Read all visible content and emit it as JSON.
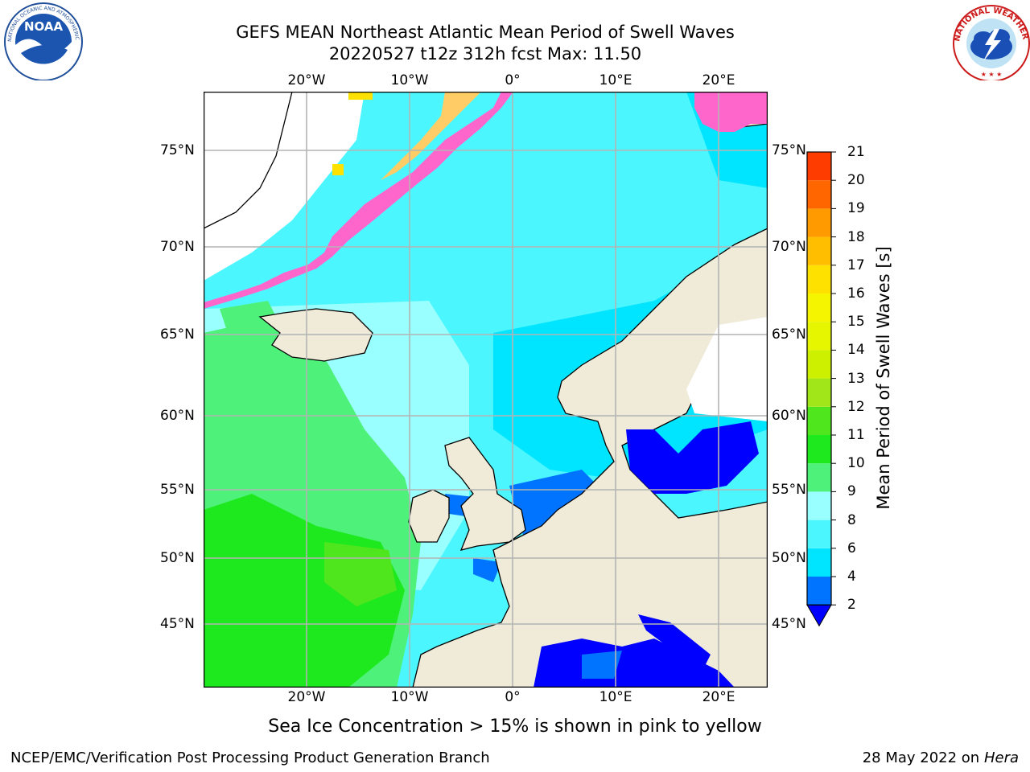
{
  "title": {
    "line1": "GEFS MEAN Northeast Atlantic Mean Period of Swell Waves",
    "line2": "20220527 t12z 312h fcst   Max: 11.50"
  },
  "map": {
    "lon_ticks": [
      "20°W",
      "10°W",
      "0°",
      "10°E",
      "20°E"
    ],
    "lat_ticks": [
      "75°N",
      "70°N",
      "65°N",
      "60°N",
      "55°N",
      "50°N",
      "45°N"
    ],
    "land_color": "#efebd8",
    "grid_color": "#b4b4b4",
    "field_summary": "Swell periods mostly 4-8 s (cyan) in the Norwegian/North Sea, 8-11 s (green) in the open Atlantic, 2-4 s (blue) in the Baltic, Mediterranean and around the British Isles; sea ice in pink/yellow along East Greenland and Svalbard."
  },
  "colorbar": {
    "label": "Mean Period of Swell Waves [s]",
    "ticks": [
      "2",
      "4",
      "6",
      "8",
      "9",
      "10",
      "11",
      "12",
      "13",
      "14",
      "15",
      "16",
      "17",
      "18",
      "19",
      "20",
      "21"
    ],
    "colors": [
      "#0073ff",
      "#00e5ff",
      "#4cf6ff",
      "#99ffff",
      "#4ef27a",
      "#1ee81e",
      "#50e61e",
      "#a0e619",
      "#cdf000",
      "#e6f600",
      "#f5f500",
      "#ffe100",
      "#ffbe00",
      "#ff9a00",
      "#ff6600",
      "#ff3c00",
      "#ff0000"
    ],
    "extend_color": "#0000ff"
  },
  "footnote": "Sea Ice Concentration > 15% is shown in pink to yellow",
  "credits": {
    "left": "NCEP/EMC/Verification Post Processing Product Generation Branch",
    "right_date": "28 May 2022 on",
    "right_host": "Hera"
  },
  "logos": {
    "noaa_text": "NOAA",
    "noaa_ring": "NATIONAL OCEANIC AND ATMOSPHERIC ADMINISTRATION · U.S. DEPARTMENT OF COMMERCE",
    "nws_ring": "NATIONAL WEATHER SERVICE"
  }
}
